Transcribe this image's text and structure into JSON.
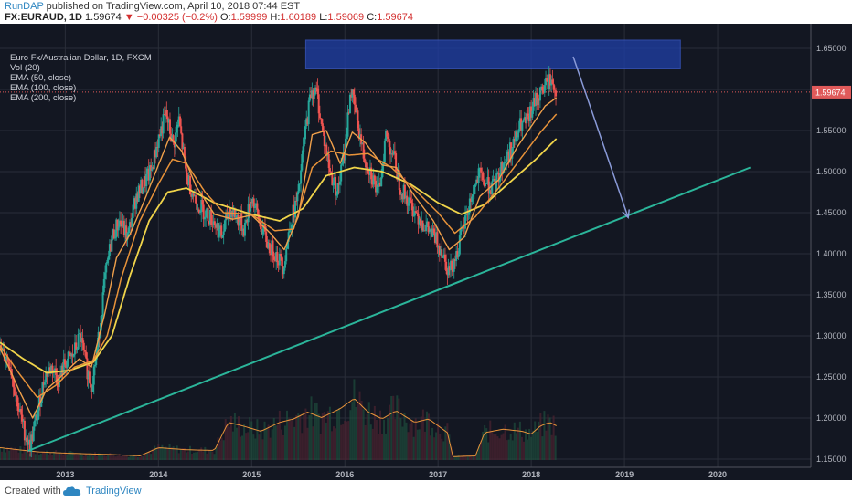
{
  "header": {
    "author": "RunDAP",
    "published": " published on TradingView.com, April 10, 2018 07:44 EST",
    "symbol": "FX:EURAUD, 1D",
    "last": "1.59674",
    "change": "−0.00325 (−0.2%)",
    "o_label": "O:",
    "o_val": "1.59999",
    "h_label": "H:",
    "h_val": "1.60189",
    "l_label": "L:",
    "l_val": "1.59069",
    "c_label": "C:",
    "c_val": "1.59674"
  },
  "legend": {
    "title": "Euro Fx/Australian Dollar, 1D, FXCM",
    "vol": "Vol (20)",
    "ema50": "EMA (50, close)",
    "ema100": "EMA (100, close)",
    "ema200": "EMA (200, close)"
  },
  "footer": {
    "created": "Created with",
    "brand": "TradingView"
  },
  "colors": {
    "bg": "#131722",
    "grid": "#2a2e39",
    "up": "#26a69a",
    "down": "#ef5350",
    "ema50": "#f0a04b",
    "ema100": "#e8933a",
    "ema200": "#f0d44a",
    "trend": "#2bb59a",
    "arrow": "#8a9ad8",
    "zone": "#1f3fa8",
    "price_line": "#e05a5a"
  },
  "chart_data": {
    "type": "candlestick",
    "x_labels": [
      "2013",
      "2014",
      "2015",
      "2016",
      "2017",
      "2018",
      "2019",
      "2020"
    ],
    "y_ticks": [
      "1.65000",
      "1.60000",
      "1.55000",
      "1.50000",
      "1.45000",
      "1.40000",
      "1.35000",
      "1.30000",
      "1.25000",
      "1.20000",
      "1.15000"
    ],
    "ylim": [
      1.14,
      1.68
    ],
    "xlim": [
      2012.3,
      2021.0
    ],
    "last_price": 1.59674,
    "last_price_label": "1.59674",
    "close_series": [
      [
        2012.3,
        1.282
      ],
      [
        2012.4,
        1.27
      ],
      [
        2012.48,
        1.222
      ],
      [
        2012.55,
        1.188
      ],
      [
        2012.62,
        1.165
      ],
      [
        2012.7,
        1.205
      ],
      [
        2012.78,
        1.252
      ],
      [
        2012.86,
        1.262
      ],
      [
        2012.93,
        1.246
      ],
      [
        2013.0,
        1.268
      ],
      [
        2013.08,
        1.275
      ],
      [
        2013.16,
        1.3
      ],
      [
        2013.22,
        1.265
      ],
      [
        2013.28,
        1.24
      ],
      [
        2013.35,
        1.288
      ],
      [
        2013.42,
        1.365
      ],
      [
        2013.5,
        1.42
      ],
      [
        2013.58,
        1.44
      ],
      [
        2013.67,
        1.42
      ],
      [
        2013.76,
        1.47
      ],
      [
        2013.84,
        1.485
      ],
      [
        2013.92,
        1.5
      ],
      [
        2014.0,
        1.54
      ],
      [
        2014.08,
        1.57
      ],
      [
        2014.16,
        1.532
      ],
      [
        2014.22,
        1.562
      ],
      [
        2014.3,
        1.495
      ],
      [
        2014.4,
        1.465
      ],
      [
        2014.5,
        1.45
      ],
      [
        2014.6,
        1.44
      ],
      [
        2014.68,
        1.42
      ],
      [
        2014.76,
        1.455
      ],
      [
        2014.84,
        1.445
      ],
      [
        2014.92,
        1.43
      ],
      [
        2015.0,
        1.47
      ],
      [
        2015.08,
        1.44
      ],
      [
        2015.18,
        1.41
      ],
      [
        2015.26,
        1.4
      ],
      [
        2015.34,
        1.385
      ],
      [
        2015.42,
        1.44
      ],
      [
        2015.5,
        1.47
      ],
      [
        2015.57,
        1.545
      ],
      [
        2015.64,
        1.6
      ],
      [
        2015.7,
        1.595
      ],
      [
        2015.76,
        1.55
      ],
      [
        2015.84,
        1.5
      ],
      [
        2015.92,
        1.475
      ],
      [
        2016.0,
        1.525
      ],
      [
        2016.06,
        1.6
      ],
      [
        2016.12,
        1.57
      ],
      [
        2016.2,
        1.52
      ],
      [
        2016.28,
        1.5
      ],
      [
        2016.36,
        1.47
      ],
      [
        2016.44,
        1.545
      ],
      [
        2016.52,
        1.52
      ],
      [
        2016.6,
        1.48
      ],
      [
        2016.7,
        1.46
      ],
      [
        2016.8,
        1.445
      ],
      [
        2016.88,
        1.43
      ],
      [
        2016.96,
        1.42
      ],
      [
        2017.04,
        1.405
      ],
      [
        2017.12,
        1.378
      ],
      [
        2017.2,
        1.4
      ],
      [
        2017.28,
        1.435
      ],
      [
        2017.36,
        1.47
      ],
      [
        2017.44,
        1.495
      ],
      [
        2017.52,
        1.485
      ],
      [
        2017.6,
        1.48
      ],
      [
        2017.7,
        1.51
      ],
      [
        2017.8,
        1.53
      ],
      [
        2017.88,
        1.555
      ],
      [
        2017.96,
        1.56
      ],
      [
        2018.04,
        1.585
      ],
      [
        2018.12,
        1.6
      ],
      [
        2018.2,
        1.612
      ],
      [
        2018.27,
        1.597
      ]
    ],
    "ema50_series": [
      [
        2012.3,
        1.285
      ],
      [
        2012.5,
        1.235
      ],
      [
        2012.65,
        1.2
      ],
      [
        2012.8,
        1.235
      ],
      [
        2012.95,
        1.25
      ],
      [
        2013.15,
        1.272
      ],
      [
        2013.28,
        1.262
      ],
      [
        2013.42,
        1.325
      ],
      [
        2013.55,
        1.395
      ],
      [
        2013.7,
        1.425
      ],
      [
        2013.85,
        1.465
      ],
      [
        2014.0,
        1.508
      ],
      [
        2014.12,
        1.542
      ],
      [
        2014.25,
        1.525
      ],
      [
        2014.4,
        1.483
      ],
      [
        2014.6,
        1.448
      ],
      [
        2014.8,
        1.442
      ],
      [
        2015.0,
        1.447
      ],
      [
        2015.2,
        1.425
      ],
      [
        2015.35,
        1.405
      ],
      [
        2015.5,
        1.445
      ],
      [
        2015.65,
        1.545
      ],
      [
        2015.8,
        1.55
      ],
      [
        2015.95,
        1.51
      ],
      [
        2016.08,
        1.548
      ],
      [
        2016.22,
        1.535
      ],
      [
        2016.4,
        1.508
      ],
      [
        2016.55,
        1.505
      ],
      [
        2016.75,
        1.47
      ],
      [
        2016.95,
        1.44
      ],
      [
        2017.12,
        1.405
      ],
      [
        2017.28,
        1.42
      ],
      [
        2017.45,
        1.47
      ],
      [
        2017.65,
        1.49
      ],
      [
        2017.85,
        1.53
      ],
      [
        2018.0,
        1.555
      ],
      [
        2018.15,
        1.58
      ],
      [
        2018.27,
        1.59
      ]
    ],
    "ema100_series": [
      [
        2012.3,
        1.288
      ],
      [
        2012.5,
        1.255
      ],
      [
        2012.7,
        1.225
      ],
      [
        2012.9,
        1.24
      ],
      [
        2013.1,
        1.262
      ],
      [
        2013.3,
        1.27
      ],
      [
        2013.45,
        1.3
      ],
      [
        2013.6,
        1.37
      ],
      [
        2013.8,
        1.44
      ],
      [
        2014.0,
        1.485
      ],
      [
        2014.15,
        1.515
      ],
      [
        2014.3,
        1.51
      ],
      [
        2014.5,
        1.475
      ],
      [
        2014.7,
        1.45
      ],
      [
        2015.0,
        1.448
      ],
      [
        2015.25,
        1.428
      ],
      [
        2015.45,
        1.43
      ],
      [
        2015.65,
        1.505
      ],
      [
        2015.85,
        1.525
      ],
      [
        2016.05,
        1.52
      ],
      [
        2016.25,
        1.522
      ],
      [
        2016.5,
        1.505
      ],
      [
        2016.75,
        1.478
      ],
      [
        2017.0,
        1.45
      ],
      [
        2017.18,
        1.425
      ],
      [
        2017.4,
        1.445
      ],
      [
        2017.65,
        1.48
      ],
      [
        2017.9,
        1.518
      ],
      [
        2018.1,
        1.548
      ],
      [
        2018.27,
        1.57
      ]
    ],
    "ema200_series": [
      [
        2012.3,
        1.292
      ],
      [
        2012.55,
        1.272
      ],
      [
        2012.8,
        1.255
      ],
      [
        2013.05,
        1.258
      ],
      [
        2013.3,
        1.268
      ],
      [
        2013.5,
        1.3
      ],
      [
        2013.7,
        1.375
      ],
      [
        2013.9,
        1.44
      ],
      [
        2014.1,
        1.475
      ],
      [
        2014.3,
        1.48
      ],
      [
        2014.6,
        1.462
      ],
      [
        2015.0,
        1.448
      ],
      [
        2015.3,
        1.44
      ],
      [
        2015.55,
        1.455
      ],
      [
        2015.8,
        1.495
      ],
      [
        2016.1,
        1.505
      ],
      [
        2016.4,
        1.5
      ],
      [
        2016.7,
        1.485
      ],
      [
        2017.0,
        1.462
      ],
      [
        2017.25,
        1.448
      ],
      [
        2017.5,
        1.46
      ],
      [
        2017.8,
        1.49
      ],
      [
        2018.05,
        1.515
      ],
      [
        2018.27,
        1.54
      ]
    ],
    "volume_series": [
      [
        2012.3,
        0.18
      ],
      [
        2012.7,
        0.12
      ],
      [
        2013.0,
        0.1
      ],
      [
        2013.5,
        0.08
      ],
      [
        2013.8,
        0.06
      ],
      [
        2014.0,
        0.18
      ],
      [
        2014.3,
        0.15
      ],
      [
        2014.6,
        0.14
      ],
      [
        2014.75,
        0.55
      ],
      [
        2014.9,
        0.5
      ],
      [
        2015.1,
        0.42
      ],
      [
        2015.3,
        0.55
      ],
      [
        2015.45,
        0.6
      ],
      [
        2015.6,
        0.7
      ],
      [
        2015.75,
        0.62
      ],
      [
        2015.95,
        0.75
      ],
      [
        2016.1,
        0.9
      ],
      [
        2016.25,
        0.7
      ],
      [
        2016.4,
        0.6
      ],
      [
        2016.55,
        0.72
      ],
      [
        2016.75,
        0.55
      ],
      [
        2016.9,
        0.6
      ],
      [
        2017.0,
        0.5
      ],
      [
        2017.1,
        0.4
      ],
      [
        2017.16,
        0.05
      ],
      [
        2017.4,
        0.06
      ],
      [
        2017.5,
        0.4
      ],
      [
        2017.7,
        0.45
      ],
      [
        2017.9,
        0.42
      ],
      [
        2018.0,
        0.38
      ],
      [
        2018.1,
        0.5
      ],
      [
        2018.2,
        0.55
      ],
      [
        2018.27,
        0.5
      ]
    ],
    "resistance_zone": {
      "x_start": 2015.58,
      "x_end": 2019.6,
      "y_low": 1.625,
      "y_high": 1.66
    },
    "trendline": {
      "x1": 2012.6,
      "y1": 1.16,
      "x2": 2020.35,
      "y2": 1.505
    },
    "arrow": {
      "x1": 2018.45,
      "y1": 1.64,
      "x2": 2019.04,
      "y2": 1.444
    }
  }
}
